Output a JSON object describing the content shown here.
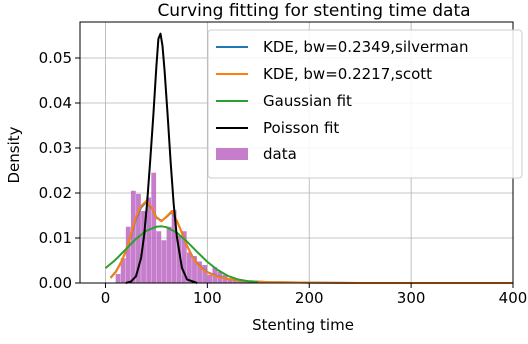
{
  "chart_data": {
    "type": "line",
    "title": "Curving fitting for stenting time data",
    "xlabel": "Stenting time",
    "ylabel": "Density",
    "xlim": [
      -25,
      400
    ],
    "ylim": [
      0,
      0.058
    ],
    "x_ticks": [
      0,
      100,
      200,
      300,
      400
    ],
    "y_ticks": [
      0.0,
      0.01,
      0.02,
      0.03,
      0.04,
      0.05
    ],
    "x_tick_labels": [
      "0",
      "100",
      "200",
      "300",
      "400"
    ],
    "y_tick_labels": [
      "0.00",
      "0.01",
      "0.02",
      "0.03",
      "0.04",
      "0.05"
    ],
    "grid": true,
    "legend_position": "top-right",
    "series": [
      {
        "name": "KDE, bw=0.2349,silverman",
        "kind": "line",
        "color": "#1f77b4",
        "x": [
          5,
          10,
          15,
          20,
          25,
          30,
          35,
          40,
          45,
          50,
          55,
          60,
          65,
          70,
          75,
          80,
          85,
          90,
          95,
          100,
          110,
          120,
          130,
          140,
          160,
          200,
          250,
          300,
          350,
          400
        ],
        "y": [
          0.0012,
          0.0025,
          0.0045,
          0.007,
          0.0105,
          0.0143,
          0.0168,
          0.018,
          0.0168,
          0.0146,
          0.0138,
          0.0147,
          0.0158,
          0.0138,
          0.0112,
          0.0083,
          0.006,
          0.0043,
          0.0032,
          0.0024,
          0.0015,
          0.0009,
          0.0006,
          0.0004,
          0.0002,
          0.0001,
          0.0,
          0.0,
          0.0,
          0.0
        ]
      },
      {
        "name": "KDE, bw=0.2217,scott",
        "kind": "line",
        "color": "#ff7f0e",
        "x": [
          5,
          10,
          15,
          20,
          25,
          30,
          35,
          40,
          45,
          50,
          55,
          60,
          65,
          70,
          75,
          80,
          85,
          90,
          95,
          100,
          110,
          120,
          130,
          140,
          160,
          200,
          250,
          300,
          350,
          400
        ],
        "y": [
          0.0011,
          0.0024,
          0.0044,
          0.0071,
          0.0107,
          0.0146,
          0.0171,
          0.0182,
          0.0169,
          0.0145,
          0.0137,
          0.0148,
          0.016,
          0.0139,
          0.0111,
          0.0082,
          0.0059,
          0.0042,
          0.0031,
          0.0023,
          0.0014,
          0.0009,
          0.0006,
          0.0004,
          0.0002,
          0.0001,
          0.0,
          0.0,
          0.0,
          0.0
        ]
      },
      {
        "name": "Gaussian fit",
        "kind": "line",
        "color": "#2ca02c",
        "x": [
          0,
          10,
          20,
          30,
          40,
          50,
          55,
          60,
          70,
          80,
          90,
          100,
          110,
          120,
          130,
          140,
          150
        ],
        "y": [
          0.0033,
          0.0052,
          0.0075,
          0.0098,
          0.0116,
          0.0125,
          0.0126,
          0.0124,
          0.0112,
          0.0092,
          0.0069,
          0.0047,
          0.0029,
          0.0016,
          0.0008,
          0.0004,
          0.0002
        ]
      },
      {
        "name": "Poisson fit",
        "kind": "line",
        "color": "#000000",
        "x": [
          20,
          25,
          30,
          35,
          38,
          41,
          44,
          47,
          50,
          52,
          54,
          56,
          58,
          61,
          64,
          67,
          70,
          75,
          80,
          90
        ],
        "y": [
          0.0,
          0.0003,
          0.0015,
          0.0056,
          0.0107,
          0.0181,
          0.0275,
          0.0375,
          0.0482,
          0.0543,
          0.0554,
          0.0527,
          0.0471,
          0.0374,
          0.0267,
          0.0175,
          0.0104,
          0.0034,
          0.0008,
          0.0
        ]
      },
      {
        "name": "data",
        "kind": "histogram",
        "color": "#b75cbf",
        "bin_edges": [
          10,
          15,
          20,
          25,
          30,
          35,
          40,
          45,
          50,
          55,
          60,
          65,
          70,
          75,
          80,
          85,
          90,
          95,
          100,
          105,
          110,
          115,
          120,
          125,
          130,
          140,
          150
        ],
        "values": [
          0.002,
          0.0055,
          0.0125,
          0.0205,
          0.0198,
          0.016,
          0.019,
          0.0245,
          0.0115,
          0.0095,
          0.0125,
          0.0162,
          0.0105,
          0.0115,
          0.0068,
          0.006,
          0.0048,
          0.004,
          0.0018,
          0.0035,
          0.0025,
          0.0018,
          0.0008,
          0.0006,
          0.0004,
          0.0002
        ]
      }
    ]
  }
}
